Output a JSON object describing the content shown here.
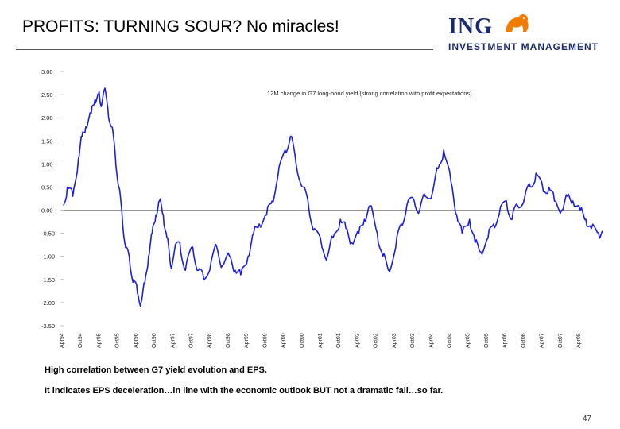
{
  "slide": {
    "title": "PROFITS: TURNING SOUR? No miracles!",
    "page_number": "47",
    "notes": [
      "High correlation between G7 yield evolution and EPS.",
      "It indicates EPS deceleration…in line with the economic outlook BUT not a dramatic fall…so far."
    ]
  },
  "logo": {
    "brand": "ING",
    "subtitle": "INVESTMENT MANAGEMENT",
    "lion_color": "#f07d00",
    "text_color": "#1a2b6d"
  },
  "chart_data": {
    "type": "line",
    "title": "",
    "legend": "12M change in G7 long-bond yield (strong correlation with profit expectations)",
    "xlabel": "",
    "ylabel": "",
    "ylim": [
      -2.5,
      3.0
    ],
    "y_ticks": [
      "3.00",
      "2.50",
      "2.00",
      "1.50",
      "1.00",
      "0.50",
      "0.00",
      "-0.50",
      "-1.00",
      "-1.50",
      "-2.00",
      "-2.50"
    ],
    "x_ticks": [
      "Apr94",
      "Oct94",
      "Apr95",
      "Oct95",
      "Apr96",
      "Oct96",
      "Apr97",
      "Oct97",
      "Apr98",
      "Oct98",
      "Apr99",
      "Oct99",
      "Apr00",
      "Oct00",
      "Apr01",
      "Oct01",
      "Apr02",
      "Oct02",
      "Apr03",
      "Oct03",
      "Apr04",
      "Oct04",
      "Apr05",
      "Oct05",
      "Apr06",
      "Oct06",
      "Apr07",
      "Oct07",
      "Apr08"
    ],
    "series_color": "#1c1fe0",
    "series": [
      {
        "name": "12M change in G7 long-bond yield",
        "x": [
          0,
          0.2,
          0.5,
          0.8,
          1,
          1.2,
          1.5,
          1.7,
          1.9,
          2.0,
          2.2,
          2.4,
          2.6,
          2.8,
          3.0,
          3.2,
          3.4,
          3.6,
          3.8,
          4.0,
          4.2,
          4.4,
          4.6,
          4.8,
          5.0,
          5.2,
          5.4,
          5.6,
          5.8,
          6.0,
          6.3,
          6.6,
          7.0,
          7.3,
          7.6,
          8.0,
          8.3,
          8.6,
          9.0,
          9.3,
          9.6,
          10.0,
          10.3,
          10.6,
          11.0,
          11.3,
          11.6,
          12.0,
          12.3,
          12.6,
          13.0,
          13.3,
          13.6,
          14.0,
          14.3,
          14.6,
          15.0,
          15.3,
          15.6,
          16.0,
          16.3,
          16.6,
          17.0,
          17.3,
          17.6,
          18.0,
          18.3,
          18.6,
          19.0,
          19.3,
          19.6,
          20.0,
          20.3,
          20.6,
          21.0,
          21.3,
          21.6,
          22.0,
          22.3,
          22.6,
          23.0,
          23.3,
          23.6,
          24.0,
          24.3,
          24.6,
          25.0,
          25.3,
          25.6,
          26.0,
          26.3,
          26.6,
          27.0,
          27.3,
          27.6,
          28.0,
          28.3,
          28.6,
          29.0,
          29.2
        ],
        "y": [
          0.1,
          0.5,
          0.3,
          1.1,
          1.6,
          1.8,
          2.1,
          2.4,
          2.5,
          2.3,
          2.6,
          2.2,
          1.8,
          1.2,
          0.5,
          -0.3,
          -0.8,
          -1.2,
          -1.5,
          -1.8,
          -2.0,
          -1.6,
          -1.0,
          -0.5,
          -0.1,
          0.2,
          -0.1,
          -0.6,
          -1.2,
          -0.9,
          -0.7,
          -1.3,
          -0.8,
          -1.3,
          -1.5,
          -1.1,
          -0.8,
          -1.2,
          -1.0,
          -1.3,
          -1.4,
          -1.0,
          -0.5,
          -0.3,
          -0.1,
          0.2,
          0.7,
          1.3,
          1.6,
          1.0,
          0.5,
          0.0,
          -0.4,
          -0.8,
          -1.0,
          -0.6,
          -0.2,
          -0.4,
          -0.7,
          -0.5,
          -0.2,
          0.1,
          -0.5,
          -1.0,
          -1.3,
          -0.8,
          -0.3,
          0.1,
          0.2,
          0.0,
          0.3,
          0.4,
          0.9,
          1.3,
          0.6,
          -0.1,
          -0.5,
          -0.2,
          -0.7,
          -0.9,
          -0.6,
          -0.3,
          -0.1,
          0.2,
          -0.2,
          0.1,
          0.3,
          0.5,
          0.8,
          0.4,
          0.5,
          0.2,
          0.0,
          0.3,
          0.2,
          0.0,
          -0.2,
          -0.4,
          -0.5,
          -0.45
        ]
      }
    ]
  }
}
